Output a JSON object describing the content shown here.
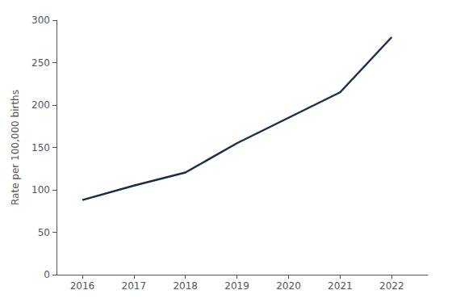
{
  "chart_data": {
    "type": "line",
    "x": [
      2016,
      2017,
      2018,
      2019,
      2020,
      2021,
      2022
    ],
    "values": [
      88.0,
      105.0,
      120.5,
      155.0,
      185.0,
      215.0,
      280.0
    ],
    "color": "#1a2e4a",
    "ylabel": "Rate per 100,000 births",
    "xlim": [
      2015.5,
      2022.7
    ],
    "xticks": [
      2016,
      2017,
      2018,
      2019,
      2020,
      2021,
      2022
    ],
    "ylim": [
      0,
      300
    ],
    "yticks": [
      0,
      50,
      100,
      150,
      200,
      250,
      300
    ],
    "grid": false
  }
}
